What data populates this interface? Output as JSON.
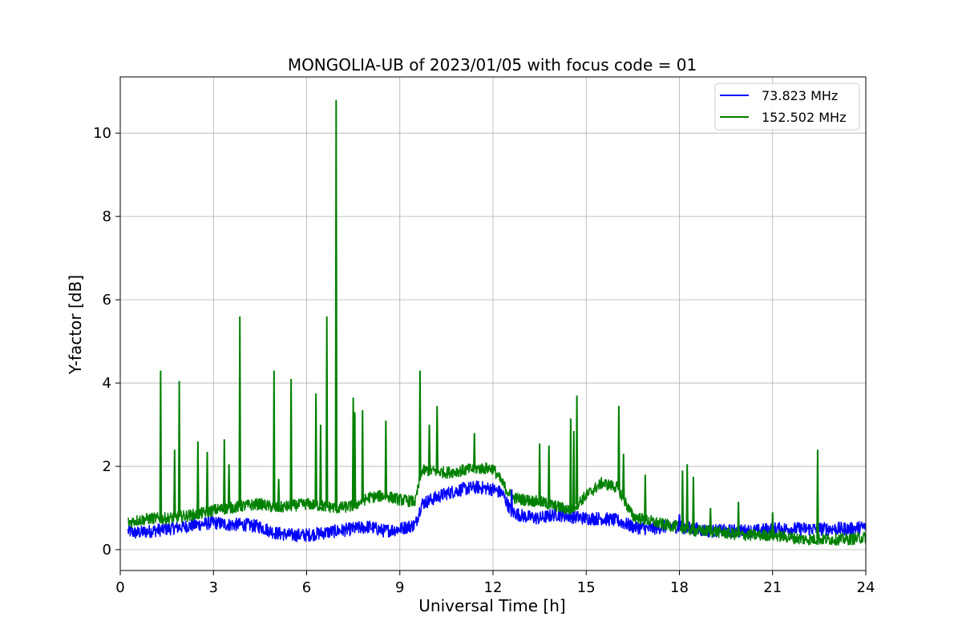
{
  "chart_data": {
    "type": "line",
    "title": "MONGOLIA-UB of 2023/01/05 with focus code = 01",
    "xlabel": "Universal Time [h]",
    "ylabel": "Y-factor [dB]",
    "xlim": [
      0,
      24
    ],
    "ylim": [
      -0.5,
      11.35
    ],
    "xticks": [
      0,
      3,
      6,
      9,
      12,
      15,
      18,
      21,
      24
    ],
    "yticks": [
      0,
      2,
      4,
      6,
      8,
      10
    ],
    "grid": true,
    "legend_position": "upper right",
    "series": [
      {
        "name": "73.823 MHz",
        "color": "#0000ff",
        "x": [
          0.25,
          0.5,
          1.0,
          1.5,
          2.0,
          2.5,
          3.0,
          3.5,
          4.0,
          4.5,
          5.0,
          5.5,
          6.0,
          6.5,
          7.0,
          7.5,
          8.0,
          8.5,
          9.0,
          9.5,
          9.7,
          10.0,
          10.5,
          11.0,
          11.5,
          12.0,
          12.3,
          12.6,
          13.0,
          13.5,
          14.0,
          14.5,
          15.0,
          15.5,
          16.0,
          16.5,
          17.0,
          17.5,
          18.0,
          18.5,
          19.0,
          19.5,
          20.0,
          20.5,
          21.0,
          21.5,
          22.0,
          22.5,
          23.0,
          23.5,
          24.0
        ],
        "y": [
          0.45,
          0.4,
          0.45,
          0.5,
          0.55,
          0.6,
          0.65,
          0.6,
          0.6,
          0.55,
          0.4,
          0.35,
          0.35,
          0.4,
          0.45,
          0.5,
          0.55,
          0.45,
          0.5,
          0.6,
          1.1,
          1.2,
          1.35,
          1.45,
          1.5,
          1.45,
          1.35,
          0.9,
          0.8,
          0.75,
          0.85,
          0.8,
          0.75,
          0.75,
          0.7,
          0.55,
          0.5,
          0.55,
          0.55,
          0.5,
          0.45,
          0.45,
          0.45,
          0.45,
          0.5,
          0.5,
          0.5,
          0.5,
          0.5,
          0.5,
          0.55
        ]
      },
      {
        "name": "152.502 MHz",
        "color": "#008000",
        "x": [
          0.25,
          0.5,
          1.0,
          1.5,
          2.0,
          2.5,
          3.0,
          3.5,
          4.0,
          4.5,
          5.0,
          5.5,
          6.0,
          6.5,
          7.0,
          7.5,
          8.0,
          8.5,
          9.0,
          9.5,
          9.7,
          10.0,
          10.5,
          11.0,
          11.5,
          12.0,
          12.3,
          12.6,
          13.0,
          13.5,
          14.0,
          14.5,
          15.0,
          15.5,
          16.0,
          16.5,
          17.0,
          17.5,
          18.0,
          18.5,
          19.0,
          19.5,
          20.0,
          20.5,
          21.0,
          21.5,
          22.0,
          22.5,
          23.0,
          23.5,
          24.0
        ],
        "y": [
          0.65,
          0.7,
          0.75,
          0.75,
          0.8,
          0.85,
          0.95,
          1.0,
          1.05,
          1.1,
          1.0,
          1.05,
          1.1,
          1.05,
          1.0,
          1.05,
          1.25,
          1.3,
          1.2,
          1.15,
          1.9,
          1.9,
          1.85,
          1.9,
          1.95,
          1.95,
          1.6,
          1.25,
          1.2,
          1.15,
          1.05,
          0.95,
          1.3,
          1.6,
          1.5,
          0.8,
          0.7,
          0.6,
          0.55,
          0.45,
          0.45,
          0.4,
          0.35,
          0.35,
          0.35,
          0.3,
          0.25,
          0.25,
          0.25,
          0.25,
          0.3
        ]
      }
    ],
    "spikes": [
      {
        "series": 1,
        "x": 1.3,
        "y": 4.3
      },
      {
        "series": 1,
        "x": 1.75,
        "y": 2.4
      },
      {
        "series": 1,
        "x": 1.9,
        "y": 4.05
      },
      {
        "series": 1,
        "x": 2.5,
        "y": 2.6
      },
      {
        "series": 1,
        "x": 2.8,
        "y": 2.35
      },
      {
        "series": 1,
        "x": 3.35,
        "y": 2.65
      },
      {
        "series": 1,
        "x": 3.5,
        "y": 2.05
      },
      {
        "series": 1,
        "x": 3.85,
        "y": 5.6
      },
      {
        "series": 1,
        "x": 4.95,
        "y": 4.3
      },
      {
        "series": 1,
        "x": 5.1,
        "y": 1.7
      },
      {
        "series": 1,
        "x": 5.5,
        "y": 4.1
      },
      {
        "series": 1,
        "x": 6.3,
        "y": 3.75
      },
      {
        "series": 1,
        "x": 6.45,
        "y": 3.0
      },
      {
        "series": 1,
        "x": 6.65,
        "y": 5.6
      },
      {
        "series": 1,
        "x": 6.95,
        "y": 10.8
      },
      {
        "series": 1,
        "x": 7.5,
        "y": 3.65
      },
      {
        "series": 1,
        "x": 7.55,
        "y": 3.3
      },
      {
        "series": 1,
        "x": 7.8,
        "y": 3.35
      },
      {
        "series": 1,
        "x": 8.55,
        "y": 3.1
      },
      {
        "series": 1,
        "x": 9.65,
        "y": 4.3
      },
      {
        "series": 1,
        "x": 9.95,
        "y": 3.0
      },
      {
        "series": 1,
        "x": 10.2,
        "y": 3.45
      },
      {
        "series": 1,
        "x": 11.4,
        "y": 2.8
      },
      {
        "series": 1,
        "x": 13.5,
        "y": 2.55
      },
      {
        "series": 1,
        "x": 13.8,
        "y": 2.5
      },
      {
        "series": 1,
        "x": 14.5,
        "y": 3.15
      },
      {
        "series": 1,
        "x": 14.6,
        "y": 2.85
      },
      {
        "series": 1,
        "x": 14.7,
        "y": 3.7
      },
      {
        "series": 1,
        "x": 16.05,
        "y": 3.45
      },
      {
        "series": 1,
        "x": 16.2,
        "y": 2.3
      },
      {
        "series": 1,
        "x": 16.9,
        "y": 1.8
      },
      {
        "series": 1,
        "x": 18.1,
        "y": 1.9
      },
      {
        "series": 1,
        "x": 18.25,
        "y": 2.05
      },
      {
        "series": 1,
        "x": 18.45,
        "y": 1.75
      },
      {
        "series": 1,
        "x": 19.0,
        "y": 1.0
      },
      {
        "series": 1,
        "x": 19.9,
        "y": 1.15
      },
      {
        "series": 1,
        "x": 21.0,
        "y": 0.9
      },
      {
        "series": 1,
        "x": 22.45,
        "y": 2.4
      },
      {
        "series": 0,
        "x": 12.6,
        "y": 1.45
      },
      {
        "series": 0,
        "x": 18.0,
        "y": 0.85
      }
    ]
  }
}
